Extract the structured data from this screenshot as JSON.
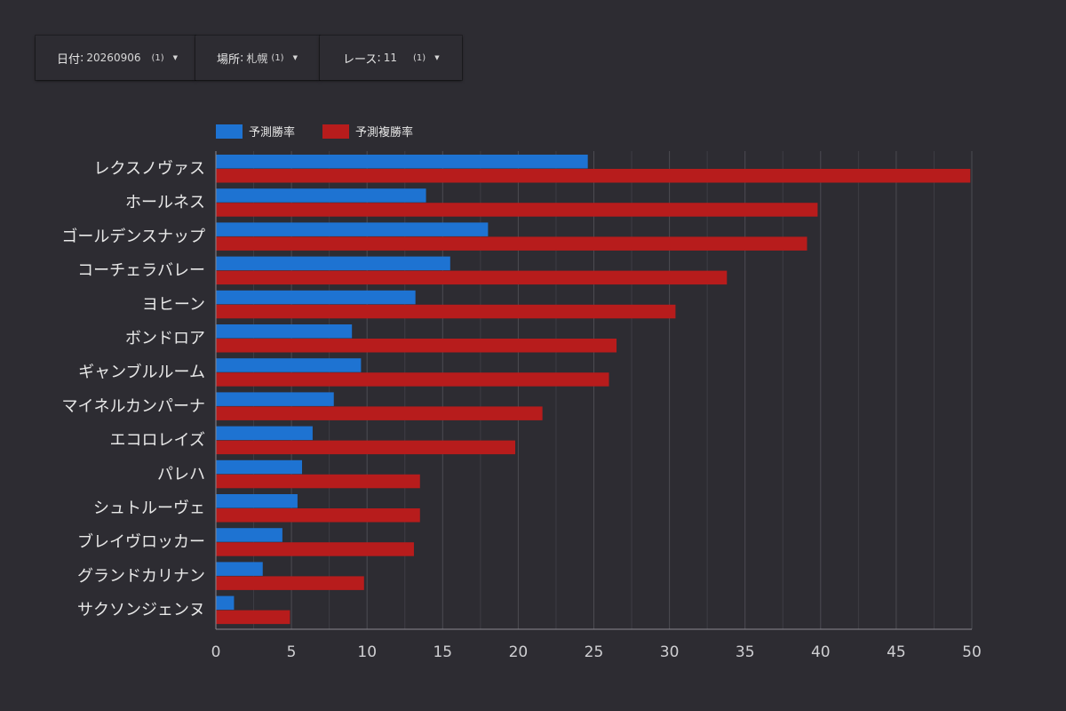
{
  "filters": {
    "date": {
      "label": "日付",
      "value": "20260906",
      "count": "(1)"
    },
    "place": {
      "label": "場所",
      "value": "札幌",
      "count": "(1)"
    },
    "race": {
      "label": "レース",
      "value": "11",
      "count": "(1)"
    }
  },
  "chart_data": {
    "type": "bar",
    "orientation": "horizontal",
    "categories": [
      "レクスノヴァス",
      "ホールネス",
      "ゴールデンスナップ",
      "コーチェラバレー",
      "ヨヒーン",
      "ボンドロア",
      "ギャンブルルーム",
      "マイネルカンパーナ",
      "エコロレイズ",
      "パレハ",
      "シュトルーヴェ",
      "ブレイヴロッカー",
      "グランドカリナン",
      "サクソンジェンヌ"
    ],
    "series": [
      {
        "name": "予測勝率",
        "color": "#1e73d2",
        "values": [
          24.6,
          13.9,
          18.0,
          15.5,
          13.2,
          9.0,
          9.6,
          7.8,
          6.4,
          5.7,
          5.4,
          4.4,
          3.1,
          1.2
        ]
      },
      {
        "name": "予測複勝率",
        "color": "#b71c1c",
        "values": [
          49.9,
          39.8,
          39.1,
          33.8,
          30.4,
          26.5,
          26.0,
          21.6,
          19.8,
          13.5,
          13.5,
          13.1,
          9.8,
          4.9
        ]
      }
    ],
    "x_ticks": [
      0,
      5,
      10,
      15,
      20,
      25,
      30,
      35,
      40,
      45,
      50
    ],
    "xlim": [
      0,
      50
    ],
    "grid": true,
    "legend_position": "top-left"
  }
}
